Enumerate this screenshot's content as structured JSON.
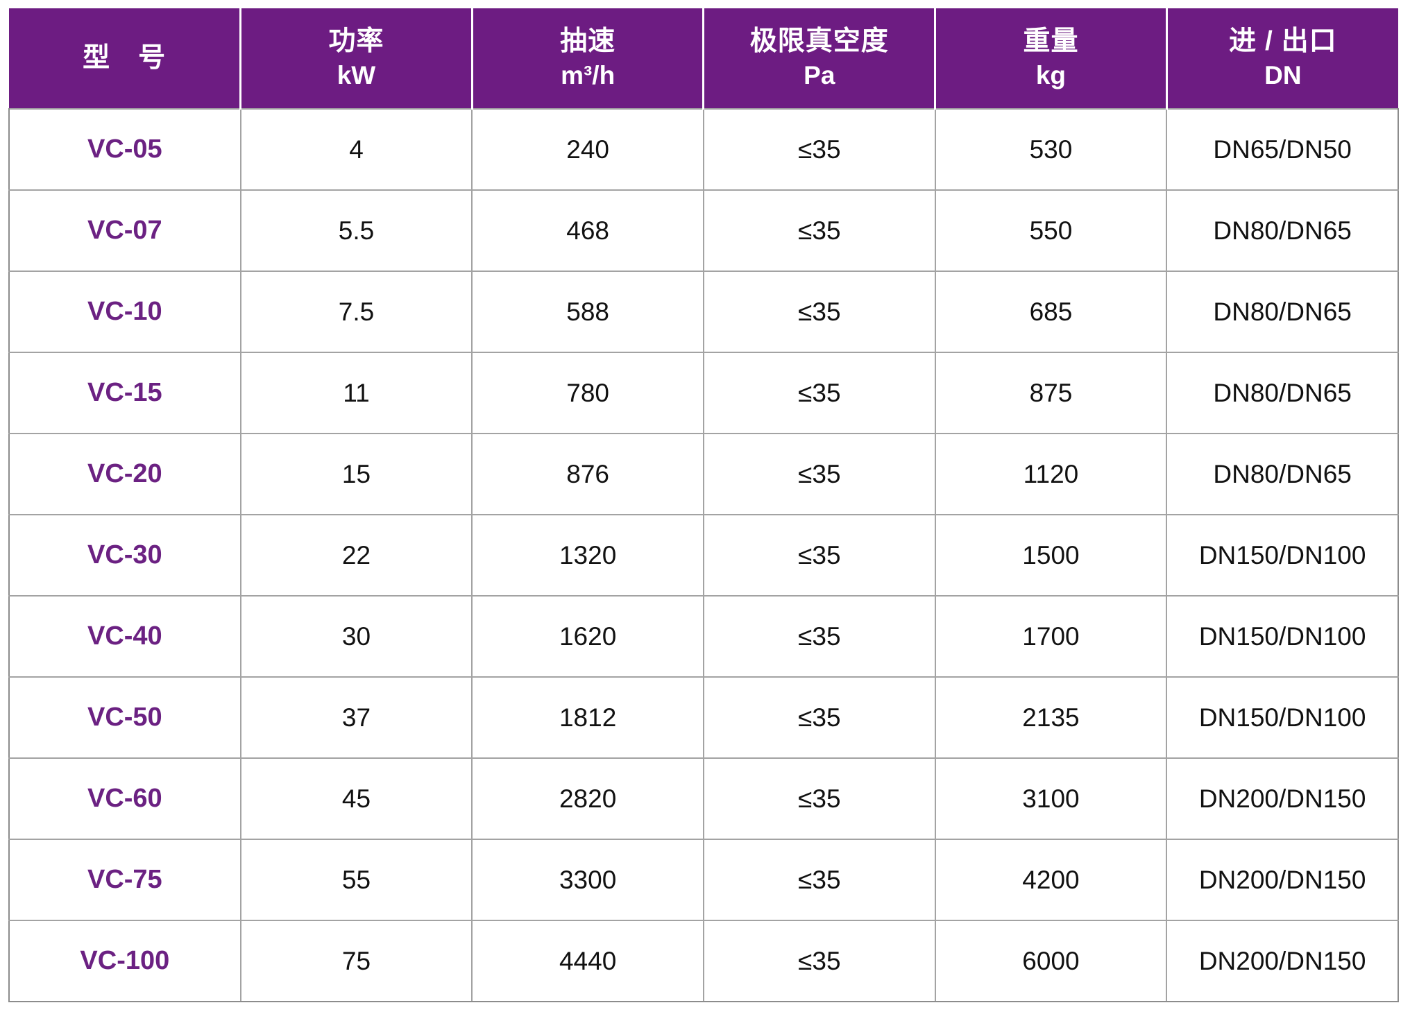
{
  "colors": {
    "header_bg": "#6D1C82",
    "model_text": "#6B2182",
    "grid_line": "#a3a3a3",
    "header_divider": "#ffffff",
    "cell_text": "#111111"
  },
  "table": {
    "columns": [
      {
        "id": "model",
        "title": "型　号",
        "unit": ""
      },
      {
        "id": "power",
        "title": "功率",
        "unit": "kW"
      },
      {
        "id": "speed",
        "title": "抽速",
        "unit": "m³/h"
      },
      {
        "id": "vacuum",
        "title": "极限真空度",
        "unit": "Pa"
      },
      {
        "id": "weight",
        "title": "重量",
        "unit": "kg"
      },
      {
        "id": "ports",
        "title": "进 / 出口",
        "unit": "DN"
      }
    ],
    "rows": [
      [
        "VC-05",
        "4",
        "240",
        "≤35",
        "530",
        "DN65/DN50"
      ],
      [
        "VC-07",
        "5.5",
        "468",
        "≤35",
        "550",
        "DN80/DN65"
      ],
      [
        "VC-10",
        "7.5",
        "588",
        "≤35",
        "685",
        "DN80/DN65"
      ],
      [
        "VC-15",
        "11",
        "780",
        "≤35",
        "875",
        "DN80/DN65"
      ],
      [
        "VC-20",
        "15",
        "876",
        "≤35",
        "1120",
        "DN80/DN65"
      ],
      [
        "VC-30",
        "22",
        "1320",
        "≤35",
        "1500",
        "DN150/DN100"
      ],
      [
        "VC-40",
        "30",
        "1620",
        "≤35",
        "1700",
        "DN150/DN100"
      ],
      [
        "VC-50",
        "37",
        "1812",
        "≤35",
        "2135",
        "DN150/DN100"
      ],
      [
        "VC-60",
        "45",
        "2820",
        "≤35",
        "3100",
        "DN200/DN150"
      ],
      [
        "VC-75",
        "55",
        "3300",
        "≤35",
        "4200",
        "DN200/DN150"
      ],
      [
        "VC-100",
        "75",
        "4440",
        "≤35",
        "6000",
        "DN200/DN150"
      ]
    ]
  }
}
